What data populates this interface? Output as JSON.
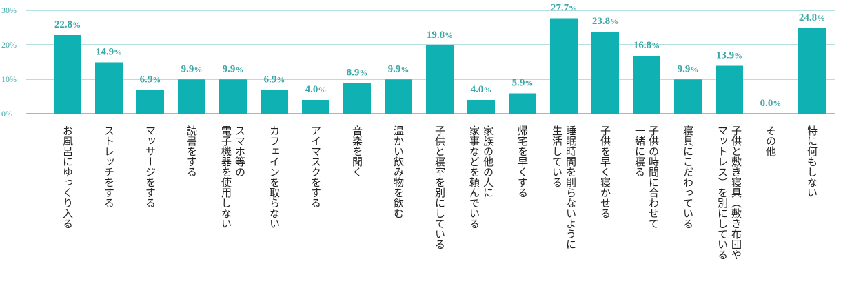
{
  "chart_data": {
    "type": "bar",
    "ylim": [
      0,
      30
    ],
    "yticks": [
      {
        "value": 0,
        "label": "0%"
      },
      {
        "value": 10,
        "label": "10%"
      },
      {
        "value": 20,
        "label": "20%"
      },
      {
        "value": 30,
        "label": "30%"
      }
    ],
    "categories": [
      [
        "お風呂にゆっくり入る"
      ],
      [
        "ストレッチをする"
      ],
      [
        "マッサージをする"
      ],
      [
        "読書をする"
      ],
      [
        "スマホ等の",
        "電子機器を使用しない"
      ],
      [
        "カフェインを取らない"
      ],
      [
        "アイマスクをする"
      ],
      [
        "音楽を聞く"
      ],
      [
        "温かい飲み物を飲む"
      ],
      [
        "子供と寝室を別にしている"
      ],
      [
        "家族の他の人に",
        "家事などを頼んでいる"
      ],
      [
        "帰宅を早くする"
      ],
      [
        "睡眠時間を削らないように",
        "生活している"
      ],
      [
        "子供を早く寝かせる"
      ],
      [
        "子供の時間に合わせて",
        "一緒に寝る"
      ],
      [
        "寝具にこだわっている"
      ],
      [
        "子供と敷き寝具（敷き布団や",
        "マットレス）を別にしている"
      ],
      [
        "その他"
      ],
      [
        "特に何もしない"
      ]
    ],
    "values": [
      22.8,
      14.9,
      6.9,
      9.9,
      9.9,
      6.9,
      4.0,
      8.9,
      9.9,
      19.8,
      4.0,
      5.9,
      27.7,
      23.8,
      16.8,
      9.9,
      13.9,
      0.0,
      24.8
    ],
    "value_labels": [
      "22.8",
      "14.9",
      "6.9",
      "9.9",
      "9.9",
      "6.9",
      "4.0",
      "8.9",
      "9.9",
      "19.8",
      "4.0",
      "5.9",
      "27.7",
      "23.8",
      "16.8",
      "9.9",
      "13.9",
      "0.0",
      "24.8"
    ],
    "value_suffix": "%",
    "grid": true,
    "colors": {
      "bar": "#0fb1b3",
      "grid": "#3aa7a7",
      "label": "#3aa7a7",
      "category_text": "#222222"
    }
  }
}
